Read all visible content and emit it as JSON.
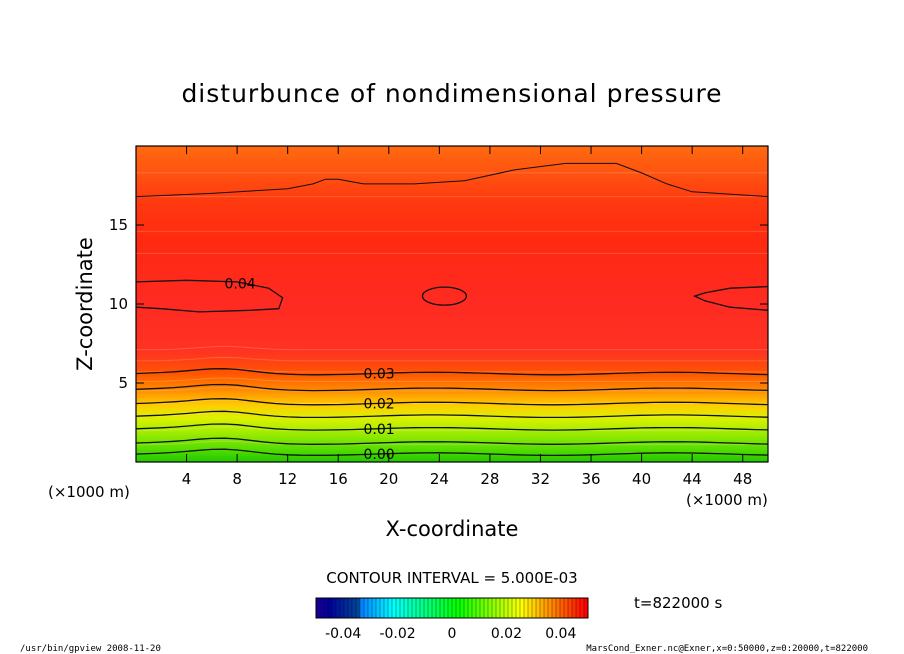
{
  "chart_data": {
    "type": "heatmap",
    "title": "disturbunce of nondimensional pressure",
    "xlabel": "X-coordinate",
    "ylabel": "Z-coordinate",
    "x_unit": "(×1000 m)",
    "y_unit": "(×1000 m)",
    "xlim": [
      0,
      50
    ],
    "ylim": [
      0,
      20
    ],
    "x_ticks": [
      4,
      8,
      12,
      16,
      20,
      24,
      28,
      32,
      36,
      40,
      44,
      48
    ],
    "y_ticks": [
      5,
      10,
      15
    ],
    "contour_interval_text": "CONTOUR INTERVAL = 5.000E-03",
    "contour_labels": [
      {
        "text": "0.04",
        "x": 7,
        "z": 11.3
      },
      {
        "text": "0.03",
        "x": 18,
        "z": 5.6
      },
      {
        "text": "0.02",
        "x": 18,
        "z": 3.7
      },
      {
        "text": "0.01",
        "x": 18,
        "z": 2.1
      },
      {
        "text": "0.00",
        "x": 18,
        "z": 0.5
      }
    ],
    "colorbar": {
      "min": -0.05,
      "max": 0.05,
      "tick_labels": [
        "-0.04",
        "-0.02",
        "0",
        "0.02",
        "0.04"
      ],
      "tick_values": [
        -0.04,
        -0.02,
        0,
        0.02,
        0.04
      ]
    },
    "time_label": "t=822000 s",
    "colors": {
      "low": "#1a00a0",
      "mid": "#7fff00",
      "high": "#ff1a1a"
    }
  },
  "footer": {
    "left": "/usr/bin/gpview   2008-11-20",
    "right": "MarsCond_Exner.nc@Exner,x=0:50000,z=0:20000,t=822000"
  }
}
